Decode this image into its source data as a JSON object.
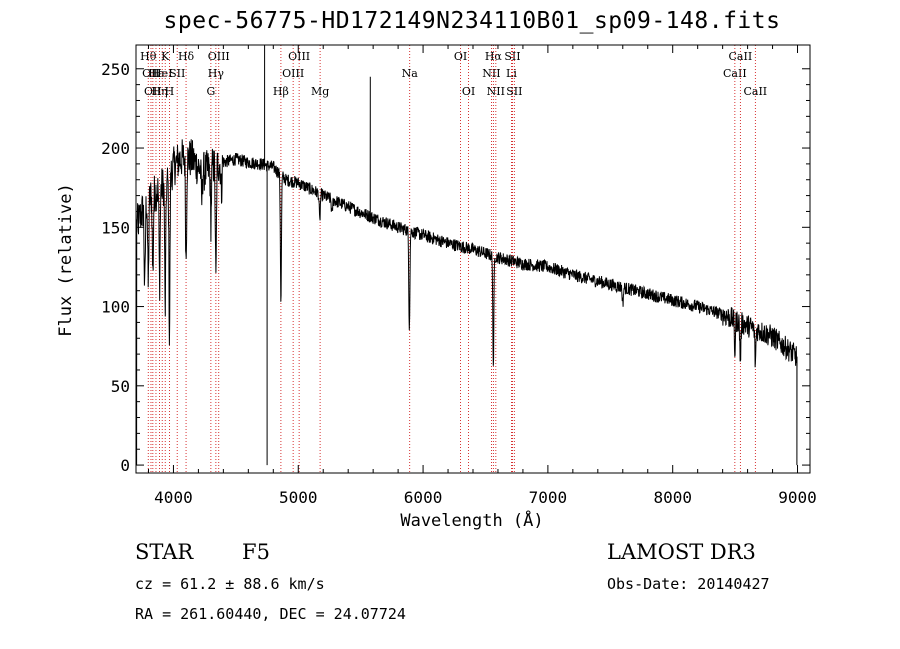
{
  "chart_data": {
    "type": "line",
    "title": "spec-56775-HD172149N234110B01_sp09-148.fits",
    "xlabel": "Wavelength (Å)",
    "ylabel": "Flux (relative)",
    "xlim": [
      3700,
      9100
    ],
    "ylim": [
      -5,
      265
    ],
    "xticks": [
      4000,
      5000,
      6000,
      7000,
      8000,
      9000
    ],
    "yticks": [
      0,
      50,
      100,
      150,
      200,
      250
    ],
    "grid": false,
    "series": [
      {
        "name": "spectrum",
        "continuum": {
          "x": [
            3700,
            3750,
            3800,
            3850,
            3900,
            3950,
            4000,
            4050,
            4100,
            4150,
            4200,
            4250,
            4300,
            4400,
            4500,
            4600,
            4700,
            4800,
            4900,
            5000,
            5200,
            5400,
            5600,
            5800,
            6000,
            6200,
            6400,
            6600,
            6800,
            7000,
            7200,
            7400,
            7600,
            7800,
            8000,
            8200,
            8400,
            8600,
            8800,
            9000
          ],
          "y": [
            150,
            160,
            168,
            172,
            175,
            178,
            188,
            193,
            194,
            193,
            188,
            185,
            188,
            191,
            193,
            191,
            190,
            188,
            180,
            178,
            170,
            163,
            156,
            150,
            145,
            140,
            136,
            131,
            127,
            125,
            120,
            116,
            112,
            108,
            104,
            100,
            95,
            88,
            81,
            68
          ]
        },
        "absorption_lines": [
          {
            "x": 3770,
            "depth": 55
          },
          {
            "x": 3798,
            "depth": 55
          },
          {
            "x": 3835,
            "depth": 50
          },
          {
            "x": 3889,
            "depth": 60
          },
          {
            "x": 3934,
            "depth": 80
          },
          {
            "x": 3968,
            "depth": 100
          },
          {
            "x": 4101,
            "depth": 65
          },
          {
            "x": 4227,
            "depth": 20
          },
          {
            "x": 4300,
            "depth": 35
          },
          {
            "x": 4340,
            "depth": 75
          },
          {
            "x": 4384,
            "depth": 18
          },
          {
            "x": 4861,
            "depth": 80
          },
          {
            "x": 5172,
            "depth": 18
          },
          {
            "x": 5270,
            "depth": 10
          },
          {
            "x": 5890,
            "depth": 60
          },
          {
            "x": 6563,
            "depth": 70
          },
          {
            "x": 7600,
            "depth": 10
          },
          {
            "x": 8498,
            "depth": 20
          },
          {
            "x": 8542,
            "depth": 25
          },
          {
            "x": 8662,
            "depth": 22
          }
        ],
        "spikes": [
          {
            "x": 4730,
            "y": 268
          },
          {
            "x": 4750,
            "y": 0
          },
          {
            "x": 5577,
            "y": 245
          },
          {
            "x": 3705,
            "y": 0
          },
          {
            "x": 8995,
            "y": 0
          }
        ],
        "noise_level": 4,
        "color": "#000000"
      }
    ],
    "line_markers": [
      {
        "x": 3798,
        "label": "Hθ",
        "row": 0
      },
      {
        "x": 3820,
        "label": "OII",
        "row": 1
      },
      {
        "x": 3835,
        "label": "OII",
        "row": 2
      },
      {
        "x": 3860,
        "label": "Hε",
        "row": 1
      },
      {
        "x": 3889,
        "label": "Hη",
        "row": 2
      },
      {
        "x": 3910,
        "label": "HeI",
        "row": 1
      },
      {
        "x": 3934,
        "label": "K",
        "row": 0
      },
      {
        "x": 3968,
        "label": "H",
        "row": 2
      },
      {
        "x": 4030,
        "label": "SII",
        "row": 1
      },
      {
        "x": 4101,
        "label": "Hδ",
        "row": 0
      },
      {
        "x": 4300,
        "label": "G",
        "row": 2
      },
      {
        "x": 4340,
        "label": "Hγ",
        "row": 1
      },
      {
        "x": 4363,
        "label": "OIII",
        "row": 0
      },
      {
        "x": 4861,
        "label": "Hβ",
        "row": 2
      },
      {
        "x": 4959,
        "label": "OIII",
        "row": 1
      },
      {
        "x": 5007,
        "label": "OIII",
        "row": 0
      },
      {
        "x": 5175,
        "label": "Mg",
        "row": 2
      },
      {
        "x": 5893,
        "label": "Na",
        "row": 1
      },
      {
        "x": 6300,
        "label": "OI",
        "row": 0
      },
      {
        "x": 6364,
        "label": "OI",
        "row": 2
      },
      {
        "x": 6548,
        "label": "NII",
        "row": 1
      },
      {
        "x": 6563,
        "label": "Hα",
        "row": 0
      },
      {
        "x": 6583,
        "label": "NII",
        "row": 2
      },
      {
        "x": 6708,
        "label": "Li",
        "row": 1
      },
      {
        "x": 6716,
        "label": "SII",
        "row": 0
      },
      {
        "x": 6731,
        "label": "SII",
        "row": 2
      },
      {
        "x": 8498,
        "label": "CaII",
        "row": 1
      },
      {
        "x": 8542,
        "label": "CaII",
        "row": 0
      },
      {
        "x": 8662,
        "label": "CaII",
        "row": 2
      }
    ],
    "marker_color": "#cc0000"
  },
  "info": {
    "object_type": "STAR",
    "subclass": "F5",
    "survey": "LAMOST DR3",
    "redshift": "cz = 61.2 ± 88.6 km/s",
    "obs_date": "Obs-Date: 20140427",
    "coords": "RA = 261.60440, DEC =  24.07724"
  }
}
